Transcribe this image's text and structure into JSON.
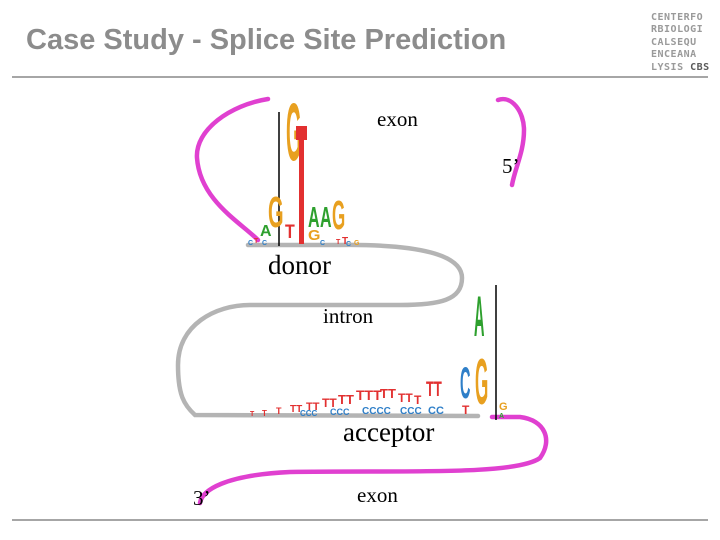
{
  "header": {
    "title": "Case Study - Splice Site Prediction"
  },
  "logo": {
    "rows": [
      "CENTERFO",
      "RBIOLOGI",
      "CALSEQU",
      "ENCEANA"
    ],
    "last_row_prefix": "LYSIS ",
    "last_row_strong": "CBS"
  },
  "diagram": {
    "labels": {
      "exon_top": "exon",
      "five_prime": "5’",
      "donor": "donor",
      "intron": "intron",
      "acceptor": "acceptor",
      "three_prime": "3’",
      "exon_bottom": "exon"
    },
    "colors": {
      "exon": "#e040d0",
      "intron": "#b4b4b4",
      "A": "#2ea02e",
      "C": "#2f7fc8",
      "G": "#e8a020",
      "T": "#e23030"
    }
  }
}
